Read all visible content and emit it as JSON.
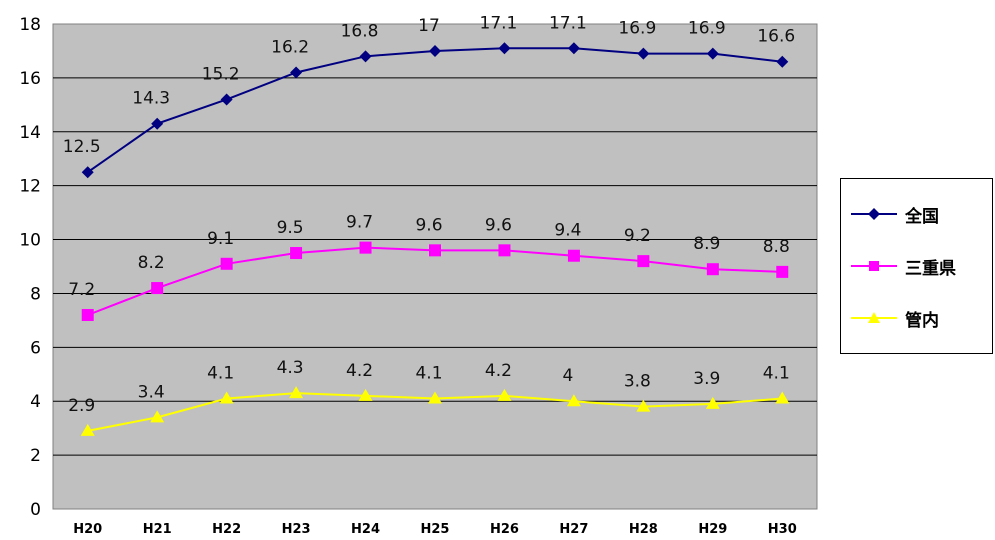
{
  "chart_data": {
    "type": "line",
    "categories": [
      "H20",
      "H21",
      "H22",
      "H23",
      "H24",
      "H25",
      "H26",
      "H27",
      "H28",
      "H29",
      "H30"
    ],
    "ylim": [
      0,
      18
    ],
    "yticks": [
      0,
      2,
      4,
      6,
      8,
      10,
      12,
      14,
      16,
      18
    ],
    "grid": true,
    "legend_position": "right",
    "plot_background": "#c0c0c0",
    "series": [
      {
        "name": "全国",
        "color": "#000080",
        "marker": "diamond",
        "values": [
          12.5,
          14.3,
          15.2,
          16.2,
          16.8,
          17,
          17.1,
          17.1,
          16.9,
          16.9,
          16.6
        ],
        "labels": [
          "12.5",
          "14.3",
          "15.2",
          "16.2",
          "16.8",
          "17",
          "17.1",
          "17.1",
          "16.9",
          "16.9",
          "16.6"
        ]
      },
      {
        "name": "三重県",
        "color": "#ff00ff",
        "marker": "square",
        "values": [
          7.2,
          8.2,
          9.1,
          9.5,
          9.7,
          9.6,
          9.6,
          9.4,
          9.2,
          8.9,
          8.8
        ],
        "labels": [
          "7.2",
          "8.2",
          "9.1",
          "9.5",
          "9.7",
          "9.6",
          "9.6",
          "9.4",
          "9.2",
          "8.9",
          "8.8"
        ]
      },
      {
        "name": "管内",
        "color": "#ffff00",
        "marker": "triangle",
        "values": [
          2.9,
          3.4,
          4.1,
          4.3,
          4.2,
          4.1,
          4.2,
          4,
          3.8,
          3.9,
          4.1
        ],
        "labels": [
          "2.9",
          "3.4",
          "4.1",
          "4.3",
          "4.2",
          "4.1",
          "4.2",
          "4",
          "3.8",
          "3.9",
          "4.1"
        ]
      }
    ]
  }
}
